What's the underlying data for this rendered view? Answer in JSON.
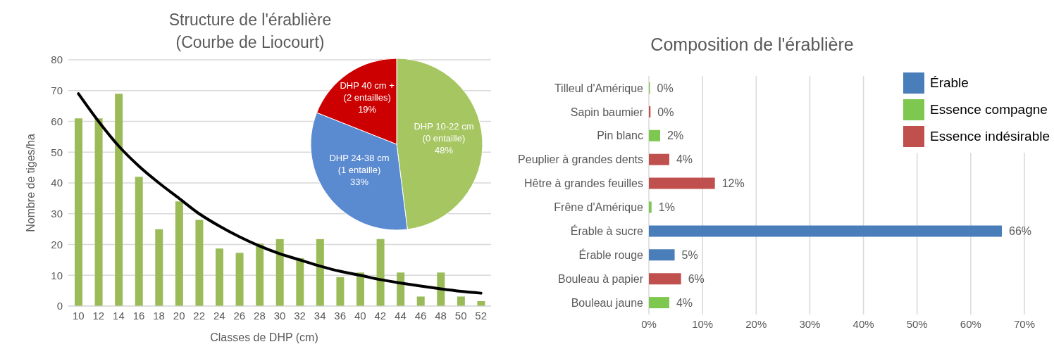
{
  "chart_data": [
    {
      "type": "bar",
      "title": "Structure de l'érablière\n(Courbe de Liocourt)",
      "xlabel": "Classes de DHP (cm)",
      "ylabel": "Nombre de tiges/ha",
      "categories": [
        "10",
        "12",
        "14",
        "16",
        "18",
        "20",
        "22",
        "24",
        "26",
        "28",
        "30",
        "32",
        "34",
        "36",
        "40",
        "42",
        "44",
        "46",
        "48",
        "50",
        "52"
      ],
      "series": [
        {
          "type": "bar",
          "color": "#9bbb59",
          "values": [
            61,
            61,
            69,
            42,
            25,
            34,
            28,
            18.7,
            17.3,
            20.3,
            21.8,
            15.6,
            21.8,
            9.4,
            10.9,
            21.8,
            10.9,
            3.1,
            10.9,
            3.1,
            1.6
          ]
        },
        {
          "type": "line",
          "color": "#000000",
          "values": [
            69,
            60,
            52,
            45.5,
            40,
            35,
            30,
            26,
            22.5,
            19.5,
            17,
            15,
            13,
            11.3,
            10,
            8.6,
            7.5,
            6.5,
            5.6,
            4.8,
            4.2
          ]
        }
      ],
      "ylim": [
        0,
        80
      ],
      "yticks": [
        0,
        10,
        20,
        30,
        40,
        50,
        60,
        70,
        80
      ],
      "grid": "y",
      "legend": false
    },
    {
      "type": "pie",
      "categories": [
        "DHP 10-22 cm\n(0 entaille)",
        "DHP 24-38 cm\n(1 entaille)",
        "DHP 40 cm +\n(2 entailles)"
      ],
      "values": [
        48,
        33,
        19
      ],
      "colors": [
        "#a5c661",
        "#5a8ad0",
        "#cc0000"
      ],
      "value_labels": [
        "48%",
        "33%",
        "19%"
      ]
    },
    {
      "type": "bar",
      "orientation": "horizontal",
      "stacked": true,
      "title": "Composition de l'érablière",
      "categories": [
        "Tilleul d'Amérique",
        "Sapin baumier",
        "Pin blanc",
        "Peuplier à grandes dents",
        "Hêtre à grandes feuilles",
        "Frêne d'Amérique",
        "Érable à sucre",
        "Érable rouge",
        "Bouleau à papier",
        "Bouleau jaune"
      ],
      "series": [
        {
          "name": "Érable",
          "color": "#4a7ebb",
          "values": [
            null,
            null,
            null,
            null,
            null,
            null,
            65.8,
            4.8,
            null,
            null
          ],
          "value_labels": [
            null,
            null,
            null,
            null,
            null,
            null,
            "66%",
            "5%",
            null,
            null
          ]
        },
        {
          "name": "Essence compagne",
          "color": "#7ec850",
          "values": [
            0.2,
            null,
            2.1,
            null,
            null,
            0.5,
            null,
            null,
            null,
            3.8
          ],
          "value_labels": [
            "0%",
            null,
            "2%",
            null,
            null,
            "1%",
            null,
            null,
            null,
            "4%"
          ]
        },
        {
          "name": "Essence indésirable",
          "color": "#c0504d",
          "values": [
            null,
            0.3,
            null,
            3.8,
            12.3,
            null,
            null,
            null,
            6,
            null
          ],
          "value_labels": [
            null,
            "0%",
            null,
            "4%",
            "12%",
            null,
            null,
            null,
            "6%",
            null
          ]
        }
      ],
      "xlim": [
        0,
        70
      ],
      "xticks": [
        {
          "value": 0,
          "label": "0%"
        },
        {
          "value": 10,
          "label": "10%"
        },
        {
          "value": 20,
          "label": "20%"
        },
        {
          "value": 30,
          "label": "30%"
        },
        {
          "value": 40,
          "label": "40%"
        },
        {
          "value": 50,
          "label": "50%"
        },
        {
          "value": 60,
          "label": "60%"
        },
        {
          "value": 70,
          "label": "70%"
        }
      ],
      "grid": "x",
      "legend": "top right"
    }
  ]
}
